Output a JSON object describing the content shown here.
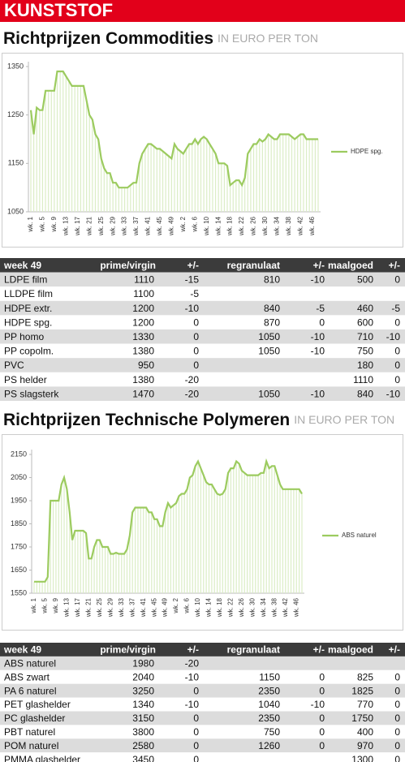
{
  "header": {
    "title": "KUNSTSTOF"
  },
  "sections": [
    {
      "title": "Richtprijzen Commodities",
      "unit": "IN EURO PER TON"
    },
    {
      "title": "Richtprijzen Technische Polymeren",
      "unit": "IN EURO PER TON"
    }
  ],
  "chart_data": [
    {
      "type": "line",
      "legend": "right",
      "categories": [
        "wk. 1",
        null,
        null,
        null,
        "wk. 5",
        null,
        null,
        null,
        "wk. 9",
        null,
        null,
        null,
        "wk. 13",
        null,
        null,
        null,
        "wk. 17",
        null,
        null,
        null,
        "wk. 21",
        null,
        null,
        null,
        "wk. 25",
        null,
        null,
        null,
        "wk. 29",
        null,
        null,
        null,
        "wk. 33",
        null,
        null,
        null,
        "wk. 37",
        null,
        null,
        null,
        "wk. 41",
        null,
        null,
        null,
        "wk. 45",
        null,
        null,
        null,
        "wk. 49",
        null,
        null,
        null,
        "wk. 2",
        null,
        null,
        null,
        "wk. 6",
        null,
        null,
        null,
        "wk. 10",
        null,
        null,
        null,
        "wk. 14",
        null,
        null,
        null,
        "wk. 18",
        null,
        null,
        null,
        "wk. 22",
        null,
        null,
        null,
        "wk. 26",
        null,
        null,
        null,
        "wk. 30",
        null,
        null,
        null,
        "wk. 34",
        null,
        null,
        null,
        "wk. 38",
        null,
        null,
        null,
        "wk. 42",
        null,
        null,
        null,
        "wk. 46",
        null,
        null
      ],
      "series": [
        {
          "name": "HDPE spg.",
          "color": "#9ccb5f",
          "values": [
            1260,
            1210,
            1265,
            1260,
            1260,
            1300,
            1300,
            1300,
            1300,
            1340,
            1340,
            1340,
            1330,
            1320,
            1310,
            1310,
            1310,
            1310,
            1310,
            1280,
            1250,
            1240,
            1210,
            1200,
            1160,
            1140,
            1130,
            1130,
            1110,
            1110,
            1100,
            1100,
            1100,
            1100,
            1105,
            1110,
            1110,
            1150,
            1170,
            1180,
            1190,
            1190,
            1185,
            1180,
            1180,
            1175,
            1170,
            1165,
            1160,
            1190,
            1180,
            1175,
            1170,
            1180,
            1190,
            1190,
            1200,
            1190,
            1200,
            1205,
            1200,
            1190,
            1180,
            1170,
            1150,
            1150,
            1150,
            1145,
            1105,
            1110,
            1115,
            1115,
            1105,
            1120,
            1170,
            1180,
            1190,
            1190,
            1200,
            1195,
            1200,
            1210,
            1205,
            1200,
            1200,
            1210,
            1210,
            1210,
            1210,
            1205,
            1200,
            1205,
            1210,
            1210,
            1200,
            1200,
            1200,
            1200,
            1200
          ]
        }
      ],
      "ylim": [
        1050,
        1350
      ],
      "yticks": [
        1050,
        1150,
        1250,
        1350
      ]
    },
    {
      "type": "line",
      "legend": "right",
      "categories": [
        "wk. 1",
        null,
        null,
        null,
        "wk. 5",
        null,
        null,
        null,
        "wk. 9",
        null,
        null,
        null,
        "wk. 13",
        null,
        null,
        null,
        "wk. 17",
        null,
        null,
        null,
        "wk. 21",
        null,
        null,
        null,
        "wk. 25",
        null,
        null,
        null,
        "wk. 29",
        null,
        null,
        null,
        "wk. 33",
        null,
        null,
        null,
        "wk. 37",
        null,
        null,
        null,
        "wk. 41",
        null,
        null,
        null,
        "wk. 45",
        null,
        null,
        null,
        "wk. 49",
        null,
        null,
        null,
        "wk. 2",
        null,
        null,
        null,
        "wk. 6",
        null,
        null,
        null,
        "wk. 10",
        null,
        null,
        null,
        "wk. 14",
        null,
        null,
        null,
        "wk. 18",
        null,
        null,
        null,
        "wk. 22",
        null,
        null,
        null,
        "wk. 26",
        null,
        null,
        null,
        "wk. 30",
        null,
        null,
        null,
        "wk. 34",
        null,
        null,
        null,
        "wk. 38",
        null,
        null,
        null,
        "wk. 42",
        null,
        null,
        null,
        "wk. 46",
        null,
        null
      ],
      "series": [
        {
          "name": "ABS naturel",
          "color": "#9ccb5f",
          "values": [
            1600,
            1600,
            1600,
            1600,
            1600,
            1620,
            1950,
            1950,
            1950,
            1950,
            2020,
            2050,
            2000,
            1900,
            1780,
            1820,
            1820,
            1820,
            1820,
            1810,
            1700,
            1700,
            1750,
            1780,
            1780,
            1750,
            1750,
            1750,
            1720,
            1720,
            1725,
            1720,
            1720,
            1720,
            1740,
            1800,
            1900,
            1920,
            1920,
            1920,
            1920,
            1920,
            1900,
            1900,
            1870,
            1870,
            1840,
            1840,
            1900,
            1940,
            1920,
            1930,
            1940,
            1970,
            1980,
            1980,
            2000,
            2050,
            2060,
            2100,
            2120,
            2090,
            2060,
            2030,
            2020,
            2020,
            2000,
            1980,
            1975,
            1980,
            2000,
            2070,
            2090,
            2090,
            2120,
            2110,
            2080,
            2070,
            2060,
            2060,
            2060,
            2060,
            2060,
            2070,
            2070,
            2120,
            2090,
            2100,
            2100,
            2060,
            2020,
            2000,
            2000,
            2000,
            2000,
            2000,
            2000,
            2000,
            1980
          ]
        }
      ],
      "ylim": [
        1550,
        2150
      ],
      "yticks": [
        1550,
        1650,
        1750,
        1850,
        1950,
        2050,
        2150
      ]
    }
  ],
  "tables": [
    {
      "columns": [
        "week 49",
        "prime/virgin",
        "+/-",
        "regranulaat",
        "+/-",
        "maalgoed",
        "+/-"
      ],
      "rows": [
        [
          "LDPE film",
          1110,
          -15,
          810,
          -10,
          500,
          0
        ],
        [
          "LLDPE film",
          1100,
          -5,
          null,
          null,
          null,
          null
        ],
        [
          "HDPE extr.",
          1200,
          -10,
          840,
          -5,
          460,
          -5
        ],
        [
          "HDPE spg.",
          1200,
          0,
          870,
          0,
          600,
          0
        ],
        [
          "PP homo",
          1330,
          0,
          1050,
          -10,
          710,
          -10
        ],
        [
          "PP copolm.",
          1380,
          0,
          1050,
          -10,
          750,
          0
        ],
        [
          "PVC",
          950,
          0,
          null,
          null,
          180,
          0
        ],
        [
          "PS helder",
          1380,
          -20,
          null,
          null,
          1110,
          0
        ],
        [
          "PS slagsterk",
          1470,
          -20,
          1050,
          -10,
          840,
          -10
        ]
      ]
    },
    {
      "columns": [
        "week 49",
        "prime/virgin",
        "+/-",
        "regranulaat",
        "+/-",
        "maalgoed",
        "+/-"
      ],
      "rows": [
        [
          "ABS naturel",
          1980,
          -20,
          null,
          null,
          null,
          null
        ],
        [
          "ABS zwart",
          2040,
          -10,
          1150,
          0,
          825,
          0
        ],
        [
          "PA 6 naturel",
          3250,
          0,
          2350,
          0,
          1825,
          0
        ],
        [
          "PET glashelder",
          1340,
          -10,
          1040,
          -10,
          770,
          0
        ],
        [
          "PC glashelder",
          3150,
          0,
          2350,
          0,
          1750,
          0
        ],
        [
          "PBT naturel",
          3800,
          0,
          750,
          0,
          400,
          0
        ],
        [
          "POM naturel",
          2580,
          0,
          1260,
          0,
          970,
          0
        ],
        [
          "PMMA glashelder",
          3450,
          0,
          null,
          null,
          1300,
          0
        ]
      ]
    }
  ]
}
